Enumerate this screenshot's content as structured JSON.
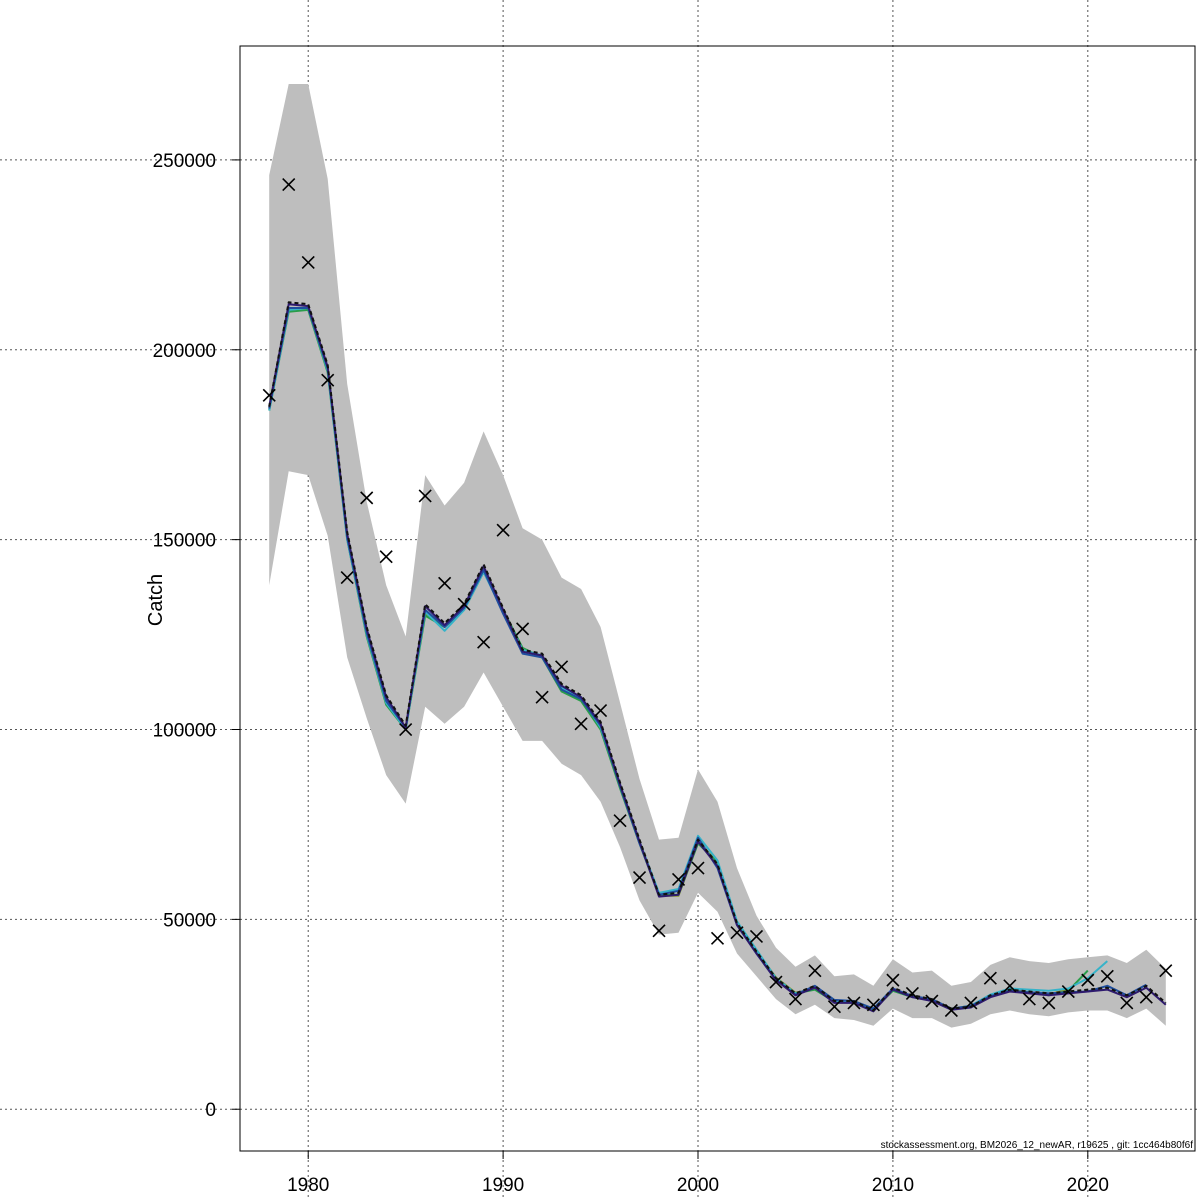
{
  "chart_data": {
    "type": "line",
    "title": "",
    "xlabel": "",
    "ylabel": "Catch",
    "xlim": [
      1976.5,
      2025.5
    ],
    "ylim": [
      -11000,
      280000
    ],
    "x_ticks": [
      "1980",
      "1990",
      "2000",
      "2010",
      "2020"
    ],
    "y_ticks": [
      "0",
      "50000",
      "100000",
      "150000",
      "200000",
      "250000"
    ],
    "grid": true,
    "footnote": "stockassessment.org, BM2026_12_newAR, r19625 , git: 1cc464b80f6f",
    "confidence_band": {
      "x": [
        1978,
        1979,
        1980,
        1981,
        1982,
        1983,
        1984,
        1985,
        1986,
        1987,
        1988,
        1989,
        1990,
        1991,
        1992,
        1993,
        1994,
        1995,
        1996,
        1997,
        1998,
        1999,
        2000,
        2001,
        2002,
        2003,
        2004,
        2005,
        2006,
        2007,
        2008,
        2009,
        2010,
        2011,
        2012,
        2013,
        2014,
        2015,
        2016,
        2017,
        2018,
        2019,
        2020,
        2021,
        2022,
        2023,
        2024
      ],
      "lower": [
        138000,
        168000,
        167000,
        151000,
        119000,
        103000,
        88000,
        80500,
        106000,
        101500,
        106000,
        115000,
        106000,
        97000,
        97000,
        91000,
        88000,
        81000,
        69000,
        55000,
        46000,
        46500,
        57000,
        52000,
        41000,
        35000,
        29000,
        25000,
        27500,
        24000,
        23500,
        22000,
        26500,
        24000,
        24000,
        21500,
        22500,
        25000,
        26000,
        25000,
        24500,
        25500,
        26000,
        26000,
        24000,
        26500,
        22000
      ],
      "upper": [
        246000,
        270000,
        270000,
        245000,
        191000,
        160000,
        138000,
        124500,
        167000,
        159000,
        165000,
        178500,
        167000,
        153000,
        150000,
        140000,
        137000,
        127000,
        107000,
        87000,
        71000,
        71500,
        89500,
        81000,
        63500,
        51000,
        42500,
        37500,
        40500,
        35000,
        35500,
        32500,
        39500,
        36000,
        36500,
        32500,
        33500,
        38000,
        40000,
        39000,
        38500,
        39500,
        40000,
        40500,
        38500,
        42000,
        37000
      ]
    },
    "x": [
      1978,
      1979,
      1980,
      1981,
      1982,
      1983,
      1984,
      1985,
      1986,
      1987,
      1988,
      1989,
      1990,
      1991,
      1992,
      1993,
      1994,
      1995,
      1996,
      1997,
      1998,
      1999,
      2000,
      2001,
      2002,
      2003,
      2004,
      2005,
      2006,
      2007,
      2008,
      2009,
      2010,
      2011,
      2012,
      2013,
      2014,
      2015,
      2016,
      2017,
      2018,
      2019,
      2020,
      2021,
      2022,
      2023,
      2024
    ],
    "observed": [
      188000,
      243500,
      223000,
      192000,
      140000,
      161000,
      145500,
      100000,
      161500,
      138500,
      133000,
      123000,
      152500,
      126500,
      108500,
      116500,
      101500,
      105000,
      76000,
      61000,
      47000,
      60500,
      63500,
      45000,
      46500,
      45500,
      33500,
      29000,
      36500,
      27000,
      28000,
      27500,
      34000,
      30500,
      28500,
      26000,
      28000,
      34500,
      32500,
      29000,
      28000,
      31000,
      34000,
      35000,
      28000,
      29500,
      36500
    ],
    "series": [
      {
        "color": "#111111",
        "dashed": true,
        "x": [
          1978,
          1979,
          1980,
          1981,
          1982,
          1983,
          1984,
          1985,
          1986,
          1987,
          1988,
          1989,
          1990,
          1991,
          1992,
          1993,
          1994,
          1995,
          1996,
          1997,
          1998,
          1999,
          2000,
          2001,
          2002,
          2003,
          2004,
          2005,
          2006,
          2007,
          2008,
          2009,
          2010,
          2011,
          2012,
          2013,
          2014,
          2015,
          2016,
          2017,
          2018,
          2019,
          2020,
          2021,
          2022,
          2023,
          2024
        ],
        "values": [
          185000,
          212500,
          212000,
          196000,
          152000,
          127000,
          109000,
          101000,
          133000,
          128000,
          133000,
          143500,
          132000,
          121000,
          120000,
          112000,
          109000,
          102000,
          86000,
          71000,
          56500,
          57000,
          71000,
          64500,
          49000,
          41500,
          34500,
          30500,
          32500,
          28500,
          28500,
          26000,
          32000,
          30000,
          29000,
          26500,
          27000,
          30000,
          31500,
          31000,
          30500,
          31000,
          31500,
          32000,
          30000,
          32500,
          28000
        ]
      },
      {
        "color": "#2e1a6e",
        "dashed": false,
        "x": [
          1978,
          1979,
          1980,
          1981,
          1982,
          1983,
          1984,
          1985,
          1986,
          1987,
          1988,
          1989,
          1990,
          1991,
          1992,
          1993,
          1994,
          1995,
          1996,
          1997,
          1998,
          1999,
          2000,
          2001,
          2002,
          2003,
          2004,
          2005,
          2006,
          2007,
          2008,
          2009,
          2010,
          2011,
          2012,
          2013,
          2014,
          2015,
          2016,
          2017,
          2018,
          2019,
          2020,
          2021,
          2022,
          2023,
          2024
        ],
        "values": [
          185000,
          212000,
          211500,
          195500,
          151500,
          126500,
          108500,
          100500,
          132500,
          127500,
          132500,
          143000,
          131500,
          120500,
          119500,
          111500,
          108500,
          101500,
          85500,
          70500,
          56000,
          56500,
          70500,
          64000,
          48500,
          41000,
          34000,
          30000,
          32000,
          28000,
          28000,
          25800,
          31500,
          29500,
          28500,
          26200,
          26800,
          29500,
          31000,
          30500,
          30000,
          30500,
          31000,
          31500,
          29500,
          32000,
          27500
        ]
      },
      {
        "color": "#1f4e9e",
        "dashed": false,
        "x": [
          1978,
          1979,
          1980,
          1981,
          1982,
          1983,
          1984,
          1985,
          1986,
          1987,
          1988,
          1989,
          1990,
          1991,
          1992,
          1993,
          1994,
          1995,
          1996,
          1997,
          1998,
          1999,
          2000,
          2001,
          2002,
          2003,
          2004,
          2005,
          2006,
          2007,
          2008,
          2009,
          2010,
          2011,
          2012,
          2013,
          2014,
          2015,
          2016,
          2017,
          2018,
          2019,
          2020,
          2021,
          2022,
          2023
        ],
        "values": [
          184500,
          211000,
          211000,
          195000,
          150500,
          125500,
          107500,
          100500,
          131500,
          127000,
          132000,
          142000,
          130500,
          120000,
          119000,
          110500,
          108000,
          101000,
          85000,
          70000,
          56500,
          57500,
          71500,
          63500,
          48500,
          41000,
          34000,
          30200,
          32500,
          28800,
          28500,
          26500,
          31800,
          29800,
          29000,
          26500,
          27200,
          29800,
          31200,
          30800,
          30500,
          30800,
          31000,
          32500,
          30000,
          32800
        ]
      },
      {
        "color": "#36b3c9",
        "dashed": false,
        "x": [
          1978,
          1979,
          1980,
          1981,
          1982,
          1983,
          1984,
          1985,
          1986,
          1987,
          1988,
          1989,
          1990,
          1991,
          1992,
          1993,
          1994,
          1995,
          1996,
          1997,
          1998,
          1999,
          2000,
          2001,
          2002,
          2003,
          2004,
          2005,
          2006,
          2007,
          2008,
          2009,
          2010,
          2011,
          2012,
          2013,
          2014,
          2015,
          2016,
          2017,
          2018,
          2019,
          2020,
          2021
        ],
        "values": [
          184000,
          210500,
          211000,
          194500,
          150000,
          125000,
          107000,
          100000,
          131000,
          126000,
          131500,
          141500,
          131000,
          121000,
          119500,
          111000,
          108500,
          100500,
          85500,
          70500,
          57000,
          58000,
          72000,
          65500,
          49500,
          42000,
          34500,
          30500,
          32000,
          28500,
          28300,
          26300,
          31500,
          29700,
          28800,
          26400,
          27300,
          30200,
          31800,
          31500,
          31200,
          31800,
          34500,
          39000
        ]
      },
      {
        "color": "#2a9d4a",
        "dashed": false,
        "x": [
          1978,
          1979,
          1980,
          1981,
          1982,
          1983,
          1984,
          1985,
          1986,
          1987,
          1988,
          1989,
          1990,
          1991,
          1992,
          1993,
          1994,
          1995,
          1996,
          1997,
          1998,
          1999,
          2000,
          2001,
          2002,
          2003,
          2004,
          2005,
          2006,
          2007,
          2008,
          2009,
          2010,
          2011,
          2012,
          2013,
          2014,
          2015,
          2016,
          2017,
          2018,
          2019,
          2020
        ],
        "values": [
          184000,
          210000,
          210500,
          194000,
          150000,
          124500,
          106500,
          100000,
          130000,
          127000,
          131500,
          141500,
          131500,
          121500,
          119000,
          110000,
          107500,
          100000,
          84500,
          70000,
          56500,
          56500,
          70000,
          65000,
          49000,
          41500,
          34500,
          30500,
          31500,
          28300,
          28000,
          26200,
          31200,
          29500,
          28600,
          26300,
          27000,
          29700,
          31300,
          30600,
          30000,
          31200,
          36500
        ]
      },
      {
        "color": "#8a9a2a",
        "dashed": false,
        "x": [
          1978,
          1979,
          1980,
          1981,
          1982,
          1983,
          1984,
          1985,
          1986,
          1987,
          1988,
          1989,
          1990,
          1991,
          1992,
          1993,
          1994,
          1995,
          1996,
          1997,
          1998,
          1999,
          2000,
          2001,
          2002,
          2003,
          2004,
          2005,
          2006,
          2007,
          2008,
          2009,
          2010,
          2011,
          2012,
          2013,
          2014,
          2015,
          2016,
          2017,
          2018,
          2019
        ],
        "values": [
          184500,
          210500,
          211000,
          194500,
          150500,
          125000,
          107000,
          100200,
          130500,
          127200,
          131800,
          141800,
          131200,
          121200,
          119200,
          110300,
          107800,
          100200,
          84800,
          70200,
          56200,
          56200,
          70200,
          65200,
          49200,
          41700,
          34700,
          30700,
          31700,
          28500,
          28200,
          26400,
          31400,
          29700,
          28800,
          26500,
          27200,
          29900,
          31500,
          30800,
          30300,
          31500
        ]
      }
    ]
  }
}
